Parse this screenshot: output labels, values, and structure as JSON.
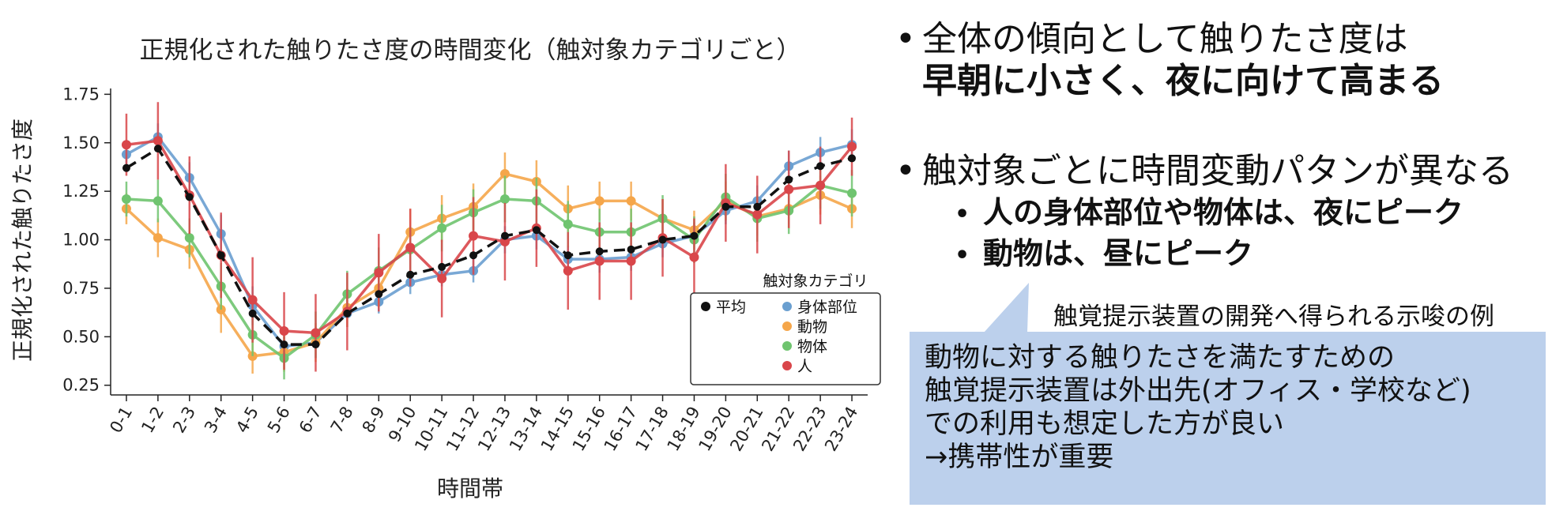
{
  "chart_data": {
    "type": "line",
    "title": "正規化された触りたさ度の時間変化（触対象カテゴリごと）",
    "xlabel": "時間帯",
    "ylabel": "正規化された触りたさ度",
    "ylim": [
      0.2,
      1.78
    ],
    "yticks": [
      0.25,
      0.5,
      0.75,
      1.0,
      1.25,
      1.5,
      1.75
    ],
    "ytick_labels": [
      "0.25",
      "0.50",
      "0.75",
      "1.00",
      "1.25",
      "1.50",
      "1.75"
    ],
    "categories": [
      "0-1",
      "1-2",
      "2-3",
      "3-4",
      "4-5",
      "5-6",
      "6-7",
      "7-8",
      "8-9",
      "9-10",
      "10-11",
      "11-12",
      "12-13",
      "13-14",
      "14-15",
      "15-16",
      "16-17",
      "17-18",
      "18-19",
      "19-20",
      "20-21",
      "21-22",
      "22-23",
      "23-24"
    ],
    "legend_title": "触対象カテゴリ",
    "legend_position": "lower-right",
    "grid": false,
    "series": [
      {
        "name": "身体部位",
        "color": "#6a9fd0",
        "values": [
          1.44,
          1.53,
          1.32,
          1.03,
          0.66,
          0.45,
          0.47,
          0.62,
          0.68,
          0.78,
          0.82,
          0.84,
          1.0,
          1.02,
          0.9,
          0.9,
          0.91,
          0.98,
          1.02,
          1.15,
          1.2,
          1.38,
          1.45,
          1.49
        ],
        "err": [
          0.05,
          0.07,
          0.08,
          0.1,
          0.1,
          0.08,
          0.08,
          0.07,
          0.06,
          0.06,
          0.06,
          0.06,
          0.07,
          0.07,
          0.07,
          0.07,
          0.07,
          0.07,
          0.07,
          0.07,
          0.08,
          0.08,
          0.08,
          0.08
        ]
      },
      {
        "name": "動物",
        "color": "#f5a64a",
        "values": [
          1.16,
          1.01,
          0.95,
          0.64,
          0.4,
          0.42,
          0.47,
          0.65,
          0.75,
          1.04,
          1.11,
          1.17,
          1.34,
          1.3,
          1.16,
          1.2,
          1.2,
          1.11,
          1.05,
          1.2,
          1.12,
          1.16,
          1.23,
          1.16
        ],
        "err": [
          0.08,
          0.1,
          0.1,
          0.12,
          0.09,
          0.1,
          0.1,
          0.1,
          0.1,
          0.12,
          0.12,
          0.12,
          0.11,
          0.11,
          0.12,
          0.1,
          0.1,
          0.1,
          0.1,
          0.1,
          0.1,
          0.1,
          0.1,
          0.1
        ]
      },
      {
        "name": "物体",
        "color": "#6fc46f",
        "values": [
          1.21,
          1.2,
          1.01,
          0.76,
          0.51,
          0.39,
          0.51,
          0.72,
          0.84,
          0.95,
          1.06,
          1.14,
          1.21,
          1.2,
          1.08,
          1.04,
          1.04,
          1.11,
          1.0,
          1.22,
          1.11,
          1.15,
          1.28,
          1.24
        ],
        "err": [
          0.09,
          0.11,
          0.1,
          0.12,
          0.11,
          0.11,
          0.12,
          0.12,
          0.12,
          0.12,
          0.12,
          0.12,
          0.12,
          0.12,
          0.12,
          0.12,
          0.12,
          0.12,
          0.12,
          0.12,
          0.12,
          0.12,
          0.12,
          0.12
        ]
      },
      {
        "name": "人",
        "color": "#d9464a",
        "values": [
          1.49,
          1.51,
          1.23,
          0.92,
          0.69,
          0.53,
          0.52,
          0.63,
          0.83,
          0.96,
          0.8,
          1.02,
          0.99,
          1.06,
          0.84,
          0.89,
          0.89,
          1.01,
          0.91,
          1.19,
          1.13,
          1.26,
          1.28,
          1.48
        ],
        "err": [
          0.16,
          0.2,
          0.2,
          0.22,
          0.22,
          0.2,
          0.2,
          0.2,
          0.2,
          0.2,
          0.2,
          0.2,
          0.2,
          0.2,
          0.2,
          0.2,
          0.2,
          0.2,
          0.2,
          0.2,
          0.2,
          0.2,
          0.2,
          0.15
        ]
      }
    ],
    "mean_series": {
      "name": "平均",
      "color": "#111111",
      "values": [
        1.37,
        1.47,
        1.22,
        0.92,
        0.62,
        0.46,
        0.46,
        0.62,
        0.72,
        0.82,
        0.86,
        0.92,
        1.02,
        1.05,
        0.92,
        0.94,
        0.95,
        1.0,
        1.02,
        1.17,
        1.17,
        1.31,
        1.38,
        1.42
      ]
    }
  },
  "text_panel": {
    "bullet1_line1": "全体の傾向として触りたさ度は",
    "bullet1_line2": "早朝に小さく、夜に向けて高まる",
    "bullet2": "触対象ごとに時間変動パタンが異なる",
    "sub_bullet1": "人の身体部位や物体は、夜にピーク",
    "sub_bullet2": "動物は、昼にピーク",
    "caption": "触覚提示装置の開発へ得られる示唆の例",
    "callout_lines": [
      "動物に対する触りたさを満たすための",
      "触覚提示装置は外出先(オフィス・学校など)",
      "での利用も想定した方が良い",
      "→携帯性が重要"
    ],
    "bullet_glyph": "•",
    "callout_color": "#bcd0ec"
  }
}
